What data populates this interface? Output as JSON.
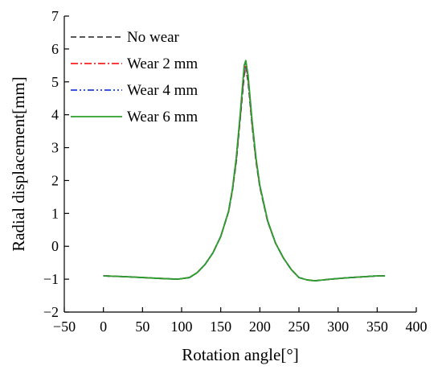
{
  "chart_data": {
    "type": "line",
    "title": "",
    "xlabel": "Rotation angle[°]",
    "ylabel": "Radial displacement[mm]",
    "xlim": [
      -50,
      400
    ],
    "ylim": [
      -2,
      7
    ],
    "xticks": [
      -50,
      0,
      50,
      100,
      150,
      200,
      250,
      300,
      350,
      400
    ],
    "yticks": [
      -2,
      -1,
      0,
      1,
      2,
      3,
      4,
      5,
      6,
      7
    ],
    "xtick_labels": [
      "−50",
      "0",
      "50",
      "100",
      "150",
      "200",
      "250",
      "300",
      "350",
      "400"
    ],
    "ytick_labels": [
      "−2",
      "−1",
      "0",
      "1",
      "2",
      "3",
      "4",
      "5",
      "6",
      "7"
    ],
    "grid": false,
    "legend_position": "top-left",
    "x": [
      0,
      25,
      50,
      75,
      95,
      110,
      120,
      130,
      140,
      150,
      160,
      165,
      170,
      175,
      180,
      182,
      185,
      190,
      195,
      200,
      210,
      220,
      230,
      240,
      250,
      260,
      270,
      290,
      310,
      330,
      350,
      360
    ],
    "series": [
      {
        "name": "No wear",
        "color": "#404040",
        "dash": "dash",
        "values": [
          -0.9,
          -0.92,
          -0.95,
          -0.98,
          -1.0,
          -0.95,
          -0.8,
          -0.55,
          -0.2,
          0.3,
          1.05,
          1.7,
          2.6,
          3.9,
          5.2,
          5.45,
          5.0,
          3.7,
          2.6,
          1.8,
          0.75,
          0.1,
          -0.35,
          -0.7,
          -0.95,
          -1.02,
          -1.05,
          -1.0,
          -0.96,
          -0.93,
          -0.9,
          -0.9
        ]
      },
      {
        "name": "Wear 2 mm",
        "color": "#ff2020",
        "dash": "dashdot",
        "values": [
          -0.9,
          -0.92,
          -0.95,
          -0.98,
          -1.0,
          -0.95,
          -0.8,
          -0.55,
          -0.2,
          0.3,
          1.05,
          1.72,
          2.65,
          3.95,
          5.3,
          5.52,
          5.1,
          3.75,
          2.65,
          1.82,
          0.76,
          0.1,
          -0.35,
          -0.7,
          -0.95,
          -1.02,
          -1.05,
          -1.0,
          -0.96,
          -0.93,
          -0.9,
          -0.9
        ]
      },
      {
        "name": "Wear 4 mm",
        "color": "#1f3fd8",
        "dash": "dashdotdot",
        "values": [
          -0.9,
          -0.92,
          -0.95,
          -0.98,
          -1.0,
          -0.95,
          -0.8,
          -0.55,
          -0.2,
          0.3,
          1.06,
          1.74,
          2.7,
          4.0,
          5.4,
          5.6,
          5.15,
          3.8,
          2.68,
          1.84,
          0.77,
          0.1,
          -0.35,
          -0.7,
          -0.95,
          -1.02,
          -1.05,
          -1.0,
          -0.96,
          -0.93,
          -0.9,
          -0.9
        ]
      },
      {
        "name": "Wear 6 mm",
        "color": "#2ca02c",
        "dash": "solid",
        "values": [
          -0.9,
          -0.92,
          -0.95,
          -0.98,
          -1.0,
          -0.95,
          -0.8,
          -0.55,
          -0.2,
          0.3,
          1.07,
          1.75,
          2.72,
          4.05,
          5.5,
          5.65,
          5.2,
          3.85,
          2.7,
          1.85,
          0.78,
          0.1,
          -0.35,
          -0.7,
          -0.95,
          -1.02,
          -1.05,
          -1.0,
          -0.96,
          -0.93,
          -0.9,
          -0.9
        ]
      }
    ]
  }
}
